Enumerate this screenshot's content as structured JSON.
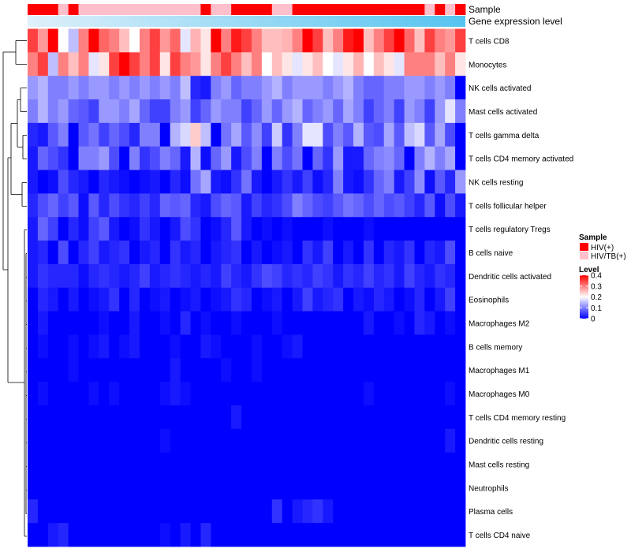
{
  "chart_data": {
    "type": "heatmap",
    "title": "",
    "annotation_tracks": [
      "Sample",
      "Gene expression level"
    ],
    "rows": [
      "T cells CD8",
      "Monocytes",
      "NK cells activated",
      "Mast cells activated",
      "T cells gamma delta",
      "T cells CD4 memory activated",
      "NK cells resting",
      "T cells follicular helper",
      "T cells regulatory  Tregs",
      "B cells naive",
      "Dendritic cells activated",
      "Eosinophils",
      "Macrophages M2",
      "B cells memory",
      "Macrophages M1",
      "Macrophages M0",
      "T cells CD4 memory resting",
      "Dendritic cells resting",
      "Mast cells resting",
      "Neutrophils",
      "Plasma cells",
      "T cells CD4 naive"
    ],
    "n_columns": 43,
    "sample_groups": [
      "HIV(+)",
      "HIV(+)",
      "HIV(+)",
      "HIV/TB(+)",
      "HIV(+)",
      "HIV/TB(+)",
      "HIV/TB(+)",
      "HIV/TB(+)",
      "HIV/TB(+)",
      "HIV/TB(+)",
      "HIV/TB(+)",
      "HIV/TB(+)",
      "HIV/TB(+)",
      "HIV/TB(+)",
      "HIV/TB(+)",
      "HIV/TB(+)",
      "HIV/TB(+)",
      "HIV(+)",
      "HIV/TB(+)",
      "HIV/TB(+)",
      "HIV(+)",
      "HIV(+)",
      "HIV(+)",
      "HIV(+)",
      "HIV/TB(+)",
      "HIV/TB(+)",
      "HIV(+)",
      "HIV(+)",
      "HIV(+)",
      "HIV(+)",
      "HIV(+)",
      "HIV(+)",
      "HIV(+)",
      "HIV(+)",
      "HIV(+)",
      "HIV(+)",
      "HIV(+)",
      "HIV(+)",
      "HIV(+)",
      "HIV/TB(+)",
      "HIV(+)",
      "HIV/TB(+)",
      "HIV(+)"
    ],
    "values": [
      [
        0.35,
        0.28,
        0.4,
        0.2,
        0.15,
        0.3,
        0.4,
        0.32,
        0.3,
        0.25,
        0.2,
        0.3,
        0.35,
        0.28,
        0.32,
        0.18,
        0.26,
        0.22,
        0.4,
        0.3,
        0.38,
        0.35,
        0.3,
        0.25,
        0.25,
        0.26,
        0.3,
        0.4,
        0.35,
        0.25,
        0.3,
        0.38,
        0.4,
        0.25,
        0.3,
        0.35,
        0.4,
        0.32,
        0.25,
        0.35,
        0.3,
        0.28,
        0.35
      ],
      [
        0.3,
        0.35,
        0.15,
        0.3,
        0.25,
        0.3,
        0.18,
        0.22,
        0.35,
        0.4,
        0.35,
        0.3,
        0.35,
        0.22,
        0.35,
        0.3,
        0.28,
        0.22,
        0.3,
        0.35,
        0.3,
        0.25,
        0.3,
        0.2,
        0.25,
        0.22,
        0.18,
        0.22,
        0.25,
        0.2,
        0.18,
        0.22,
        0.26,
        0.2,
        0.25,
        0.22,
        0.18,
        0.3,
        0.3,
        0.3,
        0.25,
        0.3,
        0.22
      ],
      [
        0.12,
        0.14,
        0.1,
        0.1,
        0.12,
        0.1,
        0.12,
        0.12,
        0.1,
        0.12,
        0.1,
        0.12,
        0.1,
        0.12,
        0.1,
        0.15,
        0.03,
        0.02,
        0.1,
        0.12,
        0.08,
        0.1,
        0.1,
        0.12,
        0.14,
        0.1,
        0.12,
        0.12,
        0.12,
        0.1,
        0.12,
        0.14,
        0.1,
        0.08,
        0.08,
        0.1,
        0.1,
        0.12,
        0.12,
        0.1,
        0.12,
        0.1,
        0.0
      ],
      [
        0.1,
        0.14,
        0.1,
        0.12,
        0.08,
        0.07,
        0.05,
        0.12,
        0.12,
        0.1,
        0.13,
        0.08,
        0.05,
        0.05,
        0.1,
        0.12,
        0.05,
        0.08,
        0.12,
        0.1,
        0.1,
        0.05,
        0.08,
        0.12,
        0.08,
        0.12,
        0.14,
        0.08,
        0.1,
        0.12,
        0.08,
        0.13,
        0.1,
        0.05,
        0.08,
        0.1,
        0.05,
        0.12,
        0.1,
        0.05,
        0.12,
        0.18,
        0.1
      ],
      [
        0.03,
        0.02,
        0.07,
        0.1,
        0.0,
        0.07,
        0.09,
        0.05,
        0.08,
        0.06,
        0.03,
        0.1,
        0.1,
        0.0,
        0.14,
        0.17,
        0.24,
        0.15,
        0.0,
        0.09,
        0.13,
        0.07,
        0.11,
        0.05,
        0.16,
        0.04,
        0.1,
        0.18,
        0.18,
        0.06,
        0.1,
        0.07,
        0.14,
        0.07,
        0.06,
        0.13,
        0.07,
        0.15,
        0.17,
        0.07,
        0.13,
        0.06,
        0.0
      ],
      [
        0.02,
        0.08,
        0.06,
        0.04,
        0.0,
        0.1,
        0.1,
        0.12,
        0.06,
        0.0,
        0.1,
        0.04,
        0.06,
        0.1,
        0.08,
        0.02,
        0.14,
        0.01,
        0.08,
        0.12,
        0.02,
        0.06,
        0.1,
        0.0,
        0.1,
        0.06,
        0.09,
        0.0,
        0.08,
        0.04,
        0.12,
        0.02,
        0.02,
        0.08,
        0.1,
        0.11,
        0.08,
        0.0,
        0.1,
        0.14,
        0.1,
        0.13,
        0.0
      ],
      [
        0.02,
        0.0,
        0.01,
        0.06,
        0.03,
        0.02,
        0.0,
        0.03,
        0.02,
        0.01,
        0.0,
        0.01,
        0.02,
        0.0,
        0.03,
        0.01,
        0.09,
        0.13,
        0.02,
        0.01,
        0.04,
        0.09,
        0.02,
        0.0,
        0.02,
        0.04,
        0.02,
        0.05,
        0.01,
        0.03,
        0.1,
        0.02,
        0.01,
        0.04,
        0.08,
        0.1,
        0.02,
        0.05,
        0.11,
        0.01,
        0.07,
        0.03,
        0.12
      ],
      [
        0.03,
        0.06,
        0.08,
        0.05,
        0.07,
        0.01,
        0.07,
        0.03,
        0.06,
        0.04,
        0.03,
        0.05,
        0.03,
        0.08,
        0.07,
        0.08,
        0.03,
        0.02,
        0.06,
        0.08,
        0.07,
        0.02,
        0.05,
        0.03,
        0.04,
        0.06,
        0.1,
        0.08,
        0.06,
        0.05,
        0.07,
        0.09,
        0.08,
        0.06,
        0.08,
        0.06,
        0.07,
        0.05,
        0.03,
        0.07,
        0.01,
        0.06,
        0.02
      ],
      [
        0.02,
        0.08,
        0.05,
        0.0,
        0.03,
        0.01,
        0.05,
        0.07,
        0.02,
        0.0,
        0.01,
        0.04,
        0.02,
        0.0,
        0.02,
        0.06,
        0.04,
        0.0,
        0.01,
        0.03,
        0.07,
        0.02,
        0.0,
        0.01,
        0.0,
        0.01,
        0.0,
        0.0,
        0.0,
        0.01,
        0.0,
        0.0,
        0.0,
        0.01,
        0.0,
        0.0,
        0.0,
        0.0,
        0.0,
        0.0,
        0.0,
        0.0,
        0.0
      ],
      [
        0.02,
        0.03,
        0.0,
        0.06,
        0.0,
        0.03,
        0.05,
        0.02,
        0.03,
        0.04,
        0.0,
        0.02,
        0.03,
        0.0,
        0.04,
        0.02,
        0.03,
        0.0,
        0.02,
        0.03,
        0.04,
        0.0,
        0.02,
        0.0,
        0.01,
        0.02,
        0.0,
        0.04,
        0.02,
        0.05,
        0.0,
        0.02,
        0.0,
        0.04,
        0.0,
        0.03,
        0.02,
        0.04,
        0.0,
        0.03,
        0.02,
        0.06,
        0.0
      ],
      [
        0.02,
        0.04,
        0.03,
        0.03,
        0.03,
        0.01,
        0.03,
        0.04,
        0.03,
        0.02,
        0.03,
        0.05,
        0.02,
        0.03,
        0.04,
        0.03,
        0.02,
        0.03,
        0.02,
        0.05,
        0.03,
        0.02,
        0.04,
        0.06,
        0.05,
        0.03,
        0.04,
        0.03,
        0.05,
        0.04,
        0.02,
        0.04,
        0.03,
        0.05,
        0.03,
        0.04,
        0.02,
        0.05,
        0.03,
        0.02,
        0.04,
        0.03,
        0.0
      ],
      [
        0.0,
        0.03,
        0.02,
        0.0,
        0.02,
        0.0,
        0.01,
        0.02,
        0.04,
        0.0,
        0.03,
        0.0,
        0.01,
        0.02,
        0.0,
        0.01,
        0.02,
        0.0,
        0.01,
        0.02,
        0.04,
        0.03,
        0.0,
        0.01,
        0.02,
        0.0,
        0.02,
        0.05,
        0.02,
        0.03,
        0.04,
        0.0,
        0.02,
        0.01,
        0.03,
        0.02,
        0.0,
        0.01,
        0.03,
        0.0,
        0.02,
        0.05,
        0.0
      ],
      [
        0.0,
        0.02,
        0.0,
        0.0,
        0.0,
        0.0,
        0.0,
        0.01,
        0.0,
        0.0,
        0.02,
        0.0,
        0.0,
        0.01,
        0.0,
        0.03,
        0.0,
        0.01,
        0.0,
        0.0,
        0.01,
        0.0,
        0.0,
        0.0,
        0.01,
        0.0,
        0.0,
        0.0,
        0.0,
        0.0,
        0.0,
        0.0,
        0.0,
        0.02,
        0.0,
        0.0,
        0.01,
        0.0,
        0.03,
        0.02,
        0.0,
        0.01,
        0.0
      ],
      [
        0.0,
        0.01,
        0.0,
        0.0,
        0.01,
        0.0,
        0.01,
        0.02,
        0.0,
        0.01,
        0.02,
        0.0,
        0.0,
        0.0,
        0.01,
        0.0,
        0.0,
        0.02,
        0.01,
        0.0,
        0.0,
        0.0,
        0.01,
        0.0,
        0.0,
        0.01,
        0.02,
        0.0,
        0.0,
        0.0,
        0.0,
        0.0,
        0.0,
        0.0,
        0.0,
        0.0,
        0.0,
        0.0,
        0.0,
        0.0,
        0.0,
        0.0,
        0.0
      ],
      [
        0.0,
        0.0,
        0.0,
        0.0,
        0.01,
        0.0,
        0.0,
        0.0,
        0.0,
        0.0,
        0.0,
        0.0,
        0.0,
        0.0,
        0.02,
        0.0,
        0.0,
        0.0,
        0.0,
        0.01,
        0.0,
        0.0,
        0.01,
        0.0,
        0.0,
        0.0,
        0.0,
        0.0,
        0.0,
        0.0,
        0.0,
        0.0,
        0.0,
        0.0,
        0.0,
        0.0,
        0.0,
        0.0,
        0.0,
        0.0,
        0.0,
        0.0,
        0.0
      ],
      [
        0.0,
        0.01,
        0.0,
        0.0,
        0.0,
        0.0,
        0.01,
        0.0,
        0.01,
        0.0,
        0.0,
        0.0,
        0.0,
        0.01,
        0.02,
        0.01,
        0.0,
        0.0,
        0.0,
        0.0,
        0.0,
        0.0,
        0.0,
        0.0,
        0.0,
        0.0,
        0.0,
        0.0,
        0.0,
        0.0,
        0.0,
        0.0,
        0.0,
        0.01,
        0.0,
        0.0,
        0.0,
        0.0,
        0.0,
        0.0,
        0.0,
        0.01,
        0.0
      ],
      [
        0.0,
        0.0,
        0.0,
        0.0,
        0.0,
        0.0,
        0.0,
        0.0,
        0.0,
        0.0,
        0.0,
        0.0,
        0.0,
        0.0,
        0.0,
        0.0,
        0.0,
        0.0,
        0.0,
        0.0,
        0.02,
        0.0,
        0.0,
        0.0,
        0.0,
        0.0,
        0.0,
        0.0,
        0.0,
        0.0,
        0.0,
        0.0,
        0.0,
        0.0,
        0.0,
        0.0,
        0.0,
        0.0,
        0.0,
        0.0,
        0.0,
        0.0,
        0.0
      ],
      [
        0.0,
        0.0,
        0.0,
        0.0,
        0.0,
        0.0,
        0.0,
        0.0,
        0.0,
        0.0,
        0.0,
        0.0,
        0.0,
        0.01,
        0.0,
        0.0,
        0.0,
        0.0,
        0.0,
        0.0,
        0.0,
        0.0,
        0.0,
        0.0,
        0.0,
        0.0,
        0.0,
        0.0,
        0.0,
        0.0,
        0.0,
        0.0,
        0.0,
        0.0,
        0.0,
        0.0,
        0.0,
        0.0,
        0.0,
        0.0,
        0.0,
        0.02,
        0.0
      ],
      [
        0.0,
        0.0,
        0.0,
        0.0,
        0.0,
        0.0,
        0.0,
        0.0,
        0.0,
        0.0,
        0.0,
        0.0,
        0.0,
        0.0,
        0.0,
        0.0,
        0.0,
        0.0,
        0.0,
        0.0,
        0.0,
        0.0,
        0.0,
        0.0,
        0.0,
        0.0,
        0.0,
        0.0,
        0.0,
        0.0,
        0.0,
        0.0,
        0.0,
        0.0,
        0.0,
        0.0,
        0.0,
        0.0,
        0.0,
        0.0,
        0.0,
        0.0,
        0.0
      ],
      [
        0.0,
        0.0,
        0.0,
        0.0,
        0.0,
        0.0,
        0.0,
        0.0,
        0.0,
        0.0,
        0.0,
        0.0,
        0.0,
        0.0,
        0.0,
        0.0,
        0.0,
        0.0,
        0.0,
        0.0,
        0.0,
        0.0,
        0.0,
        0.0,
        0.0,
        0.0,
        0.0,
        0.0,
        0.0,
        0.0,
        0.0,
        0.0,
        0.0,
        0.0,
        0.0,
        0.0,
        0.0,
        0.0,
        0.0,
        0.0,
        0.0,
        0.0,
        0.0
      ],
      [
        0.03,
        0.0,
        0.0,
        0.0,
        0.0,
        0.0,
        0.0,
        0.0,
        0.0,
        0.0,
        0.0,
        0.0,
        0.0,
        0.0,
        0.0,
        0.0,
        0.0,
        0.0,
        0.0,
        0.0,
        0.0,
        0.0,
        0.0,
        0.0,
        0.04,
        0.0,
        0.02,
        0.03,
        0.04,
        0.02,
        0.0,
        0.0,
        0.0,
        0.0,
        0.0,
        0.0,
        0.0,
        0.0,
        0.0,
        0.0,
        0.0,
        0.0,
        0.0
      ],
      [
        0.0,
        0.0,
        0.02,
        0.03,
        0.0,
        0.0,
        0.0,
        0.0,
        0.0,
        0.0,
        0.0,
        0.0,
        0.0,
        0.01,
        0.0,
        0.02,
        0.0,
        0.03,
        0.0,
        0.0,
        0.0,
        0.0,
        0.0,
        0.0,
        0.0,
        0.0,
        0.0,
        0.0,
        0.0,
        0.0,
        0.0,
        0.0,
        0.0,
        0.0,
        0.0,
        0.0,
        0.0,
        0.0,
        0.0,
        0.0,
        0.0,
        0.0,
        0.0
      ]
    ],
    "legend": {
      "sample_title": "Sample",
      "sample_entries": [
        {
          "label": "HIV(+)",
          "color": "#ff0000"
        },
        {
          "label": "HIV/TB(+)",
          "color": "#ffc0cb"
        }
      ],
      "level_title": "Level",
      "level_ticks": [
        {
          "value": 0.4,
          "label": "0.4"
        },
        {
          "value": 0.3,
          "label": "0.3"
        },
        {
          "value": 0.2,
          "label": "0.2"
        },
        {
          "value": 0.1,
          "label": "0.1"
        },
        {
          "value": 0,
          "label": "0"
        }
      ],
      "level_range": [
        0,
        0.4
      ]
    },
    "colors": {
      "low": "#0000ff",
      "mid": "#ffffff",
      "high": "#ff0000",
      "expr_bar_start": "#dff0fa",
      "expr_bar_end": "#56c4ef"
    },
    "xlabel": "",
    "ylabel": ""
  }
}
